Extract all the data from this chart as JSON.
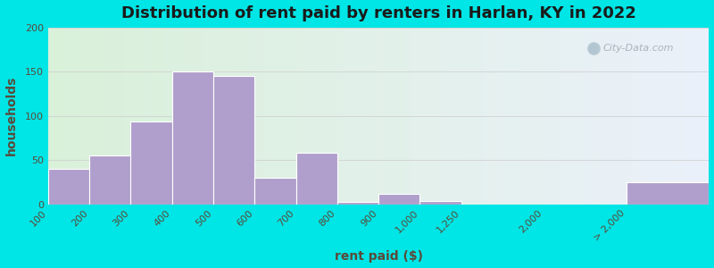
{
  "title": "Distribution of rent paid by renters in Harlan, KY in 2022",
  "xlabel": "rent paid ($)",
  "ylabel": "households",
  "bar_color": "#b09fcc",
  "bar_edge_color": "#ffffff",
  "background_outer": "#00e5e5",
  "background_inner_left": "#d8eeda",
  "background_inner_right": "#e8f0f8",
  "ylim": [
    0,
    200
  ],
  "yticks": [
    0,
    50,
    100,
    150,
    200
  ],
  "tick_labels": [
    "100",
    "200",
    "300",
    "400",
    "500",
    "600",
    "700",
    "800",
    "900",
    "1,000",
    "1,250",
    "2,000",
    "> 2,000"
  ],
  "bar_lefts": [
    0,
    1,
    2,
    3,
    4,
    5,
    6,
    7,
    8,
    9,
    10,
    12,
    14
  ],
  "bar_widths": [
    1,
    1,
    1,
    1,
    1,
    1,
    1,
    1,
    1,
    1,
    1,
    1,
    2
  ],
  "values": [
    40,
    55,
    94,
    150,
    145,
    30,
    58,
    3,
    12,
    4,
    0,
    0,
    25
  ],
  "tick_positions": [
    0,
    1,
    2,
    3,
    4,
    5,
    6,
    7,
    8,
    9,
    10,
    12,
    14
  ],
  "xlim": [
    0,
    16
  ],
  "title_fontsize": 13,
  "axis_label_fontsize": 10,
  "tick_fontsize": 8
}
